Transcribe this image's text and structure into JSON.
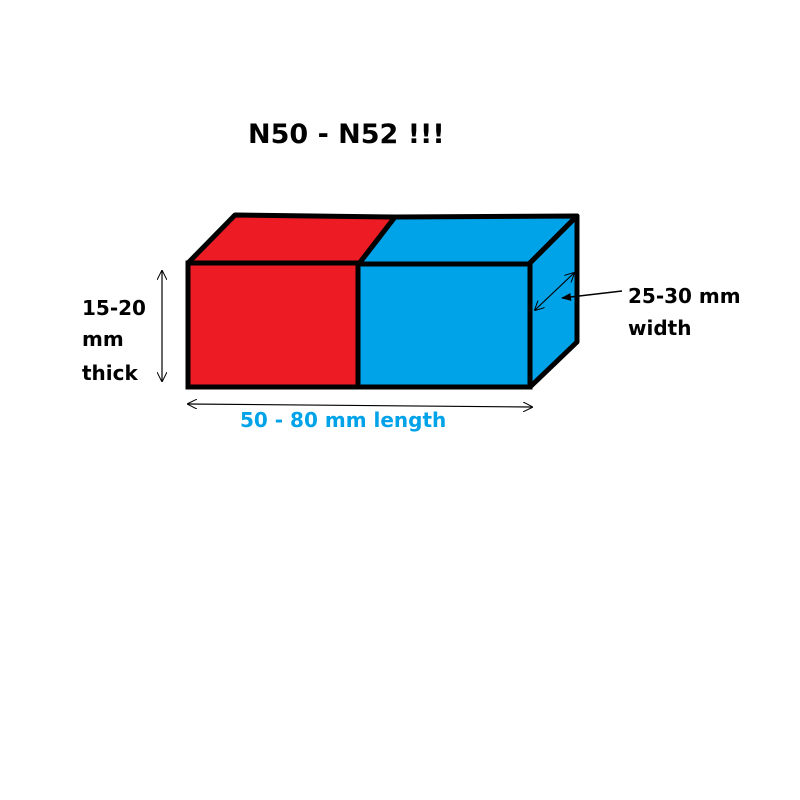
{
  "title": "N50 - N52 !!!",
  "magnet": {
    "north_color": "#ed1c24",
    "south_color": "#00a2e8",
    "outline_color": "#000000"
  },
  "dimensions": {
    "thickness": {
      "line1": "15-20",
      "line2": "mm",
      "line3": "thick"
    },
    "length": {
      "text": "50 - 80 mm length",
      "color": "#00a2e8"
    },
    "width": {
      "line1": "25-30 mm",
      "line2": "width"
    }
  }
}
